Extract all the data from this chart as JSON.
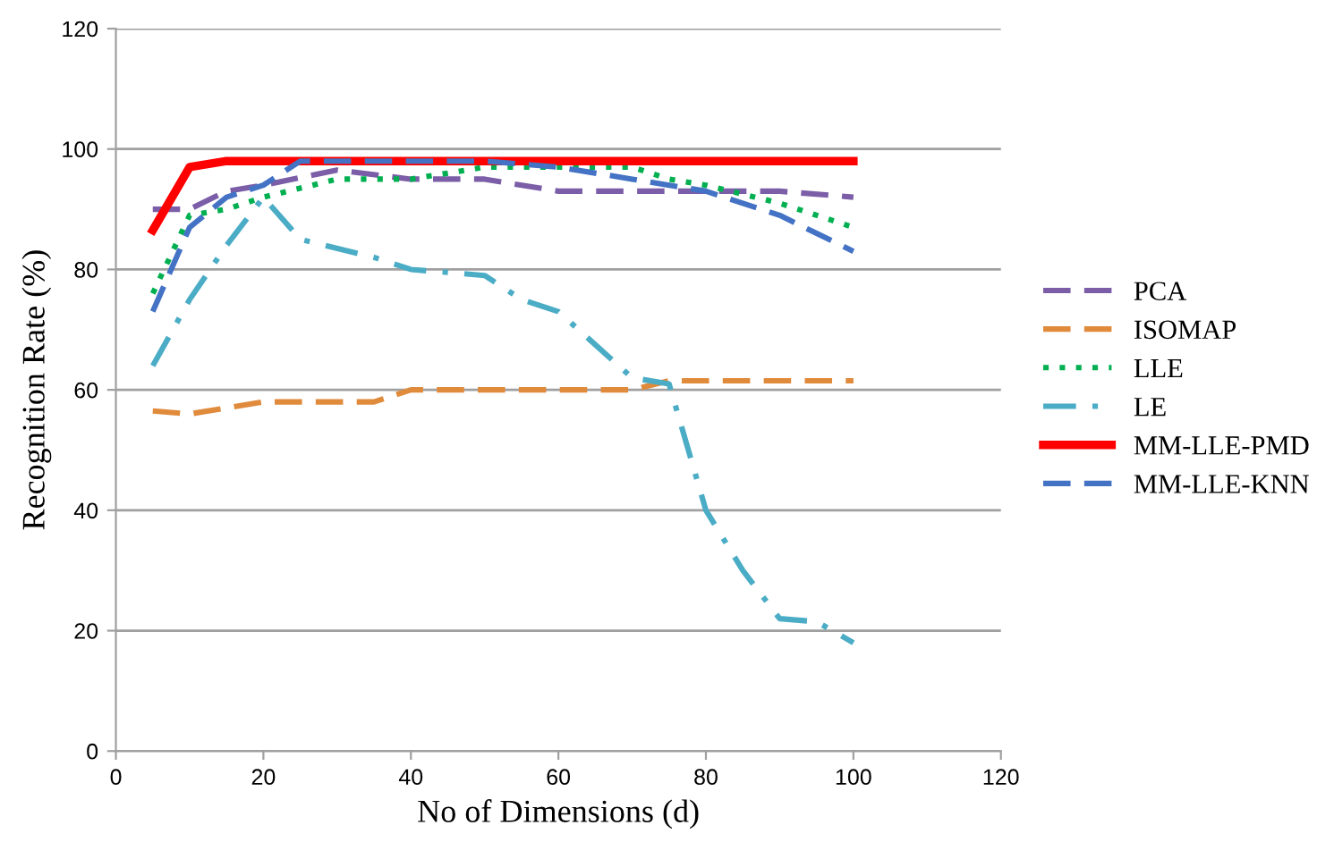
{
  "chart_data": {
    "type": "line",
    "xlabel": "No of Dimensions (d)",
    "ylabel": "Recognition Rate (%)",
    "xlim": [
      0,
      120
    ],
    "xticks": [
      0,
      20,
      40,
      60,
      80,
      100,
      120
    ],
    "ylim": [
      0,
      120
    ],
    "yticks": [
      0,
      20,
      40,
      60,
      80,
      100,
      120
    ],
    "grid": "y",
    "legend": "right",
    "marker": "none",
    "series": [
      {
        "name": "PCA",
        "color": "#7b5ea7",
        "line_style": "dashed",
        "x": [
          5,
          10,
          15,
          20,
          30,
          40,
          50,
          60,
          70,
          80,
          90,
          100
        ],
        "values": [
          90,
          90,
          93,
          94,
          96.5,
          95,
          95,
          93,
          93,
          93,
          93,
          92
        ]
      },
      {
        "name": "ISOMAP",
        "color": "#e08a3c",
        "line_style": "dashed",
        "x": [
          5,
          10,
          20,
          30,
          35,
          40,
          50,
          60,
          70,
          75,
          80,
          90,
          100
        ],
        "values": [
          56.5,
          56,
          58,
          58,
          58,
          60,
          60,
          60,
          60,
          61.5,
          61.5,
          61.5,
          61.5
        ]
      },
      {
        "name": "LLE",
        "color": "#00b050",
        "line_style": "dotted",
        "x": [
          5,
          10,
          15,
          20,
          30,
          40,
          50,
          60,
          70,
          75,
          80,
          90,
          100
        ],
        "values": [
          76,
          89,
          90,
          92,
          95,
          95,
          97,
          97,
          97,
          95,
          94,
          91,
          87
        ]
      },
      {
        "name": "LE",
        "color": "#4bacc6",
        "line_style": "dashdot",
        "x": [
          5,
          10,
          15,
          20,
          25,
          35,
          40,
          50,
          55,
          60,
          70,
          75,
          80,
          85,
          90,
          95,
          100
        ],
        "values": [
          64,
          75,
          84,
          92,
          85,
          82,
          80,
          79,
          75,
          73,
          62,
          61,
          40,
          30,
          22,
          21.5,
          18
        ]
      },
      {
        "name": "MM-LLE-PMD",
        "color": "#ff0000",
        "line_style": "solid",
        "x": [
          5,
          10,
          15,
          20,
          30,
          40,
          50,
          60,
          70,
          80,
          90,
          100
        ],
        "values": [
          86.5,
          97,
          98,
          98,
          98,
          98,
          98,
          98,
          98,
          98,
          98,
          98
        ]
      },
      {
        "name": "MM-LLE-KNN",
        "color": "#4472c4",
        "line_style": "dashed",
        "x": [
          5,
          10,
          15,
          20,
          25,
          30,
          40,
          50,
          60,
          70,
          80,
          90,
          100
        ],
        "values": [
          73,
          87,
          92,
          94,
          98,
          98,
          98,
          98,
          97,
          95,
          93,
          89,
          83
        ]
      }
    ]
  }
}
